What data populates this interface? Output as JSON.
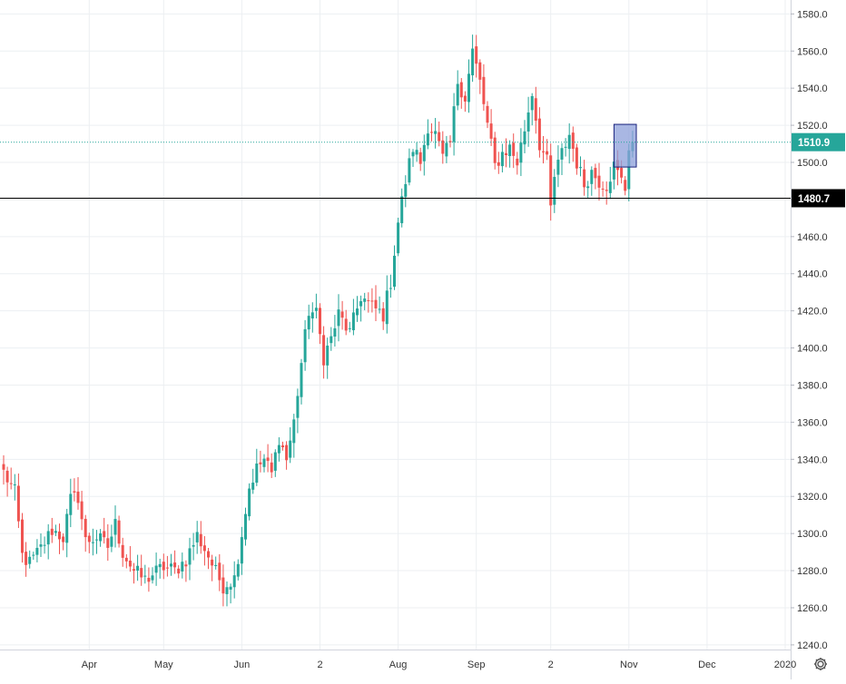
{
  "chart_data": {
    "type": "candlestick",
    "title": "",
    "xlabel": "",
    "ylabel": "",
    "ylim": [
      1237.5,
      1587.5
    ],
    "y_ticks": [
      1240,
      1260,
      1280,
      1300,
      1320,
      1340,
      1360,
      1380,
      1400,
      1420,
      1440,
      1460,
      1480,
      1500,
      1520,
      1540,
      1560,
      1580
    ],
    "x_ticks": [
      {
        "label": "Apr",
        "index": 23
      },
      {
        "label": "May",
        "index": 43
      },
      {
        "label": "Jun",
        "index": 64
      },
      {
        "label": "2",
        "index": 85
      },
      {
        "label": "Aug",
        "index": 106
      },
      {
        "label": "Sep",
        "index": 127
      },
      {
        "label": "2",
        "index": 147
      },
      {
        "label": "Nov",
        "index": 168
      },
      {
        "label": "Dec",
        "index": 189
      },
      {
        "label": "2020",
        "index": 210
      }
    ],
    "grid": true,
    "colors": {
      "up": "#26a69a",
      "down": "#ef5350",
      "grid": "#eceff2",
      "price_line": "#26a69a",
      "level_line": "#000000",
      "box_fill": "#8c9fd9",
      "box_stroke": "#1a237e"
    },
    "last_price": {
      "value": 1510.9,
      "label": "1510.9"
    },
    "horizontal_line": {
      "value": 1480.7,
      "label": "1480.7"
    },
    "rectangle": {
      "index_from": 164,
      "index_to": 170,
      "price_top": 1520.5,
      "price_bottom": 1497.5
    },
    "anchors": [
      [
        0,
        1333
      ],
      [
        3,
        1322
      ],
      [
        5,
        1288
      ],
      [
        7,
        1284
      ],
      [
        10,
        1292
      ],
      [
        13,
        1302
      ],
      [
        16,
        1298
      ],
      [
        18,
        1318
      ],
      [
        20,
        1320
      ],
      [
        22,
        1296
      ],
      [
        25,
        1298
      ],
      [
        28,
        1293
      ],
      [
        30,
        1305
      ],
      [
        32,
        1290
      ],
      [
        35,
        1280
      ],
      [
        38,
        1275
      ],
      [
        40,
        1278
      ],
      [
        43,
        1282
      ],
      [
        46,
        1280
      ],
      [
        49,
        1286
      ],
      [
        52,
        1299
      ],
      [
        55,
        1288
      ],
      [
        57,
        1279
      ],
      [
        59,
        1272
      ],
      [
        62,
        1276
      ],
      [
        64,
        1300
      ],
      [
        66,
        1325
      ],
      [
        68,
        1335
      ],
      [
        70,
        1340
      ],
      [
        72,
        1332
      ],
      [
        74,
        1352
      ],
      [
        76,
        1340
      ],
      [
        78,
        1360
      ],
      [
        80,
        1392
      ],
      [
        82,
        1420
      ],
      [
        84,
        1418
      ],
      [
        86,
        1395
      ],
      [
        88,
        1405
      ],
      [
        90,
        1418
      ],
      [
        93,
        1408
      ],
      [
        96,
        1428
      ],
      [
        99,
        1422
      ],
      [
        102,
        1418
      ],
      [
        104,
        1436
      ],
      [
        106,
        1468
      ],
      [
        108,
        1490
      ],
      [
        110,
        1508
      ],
      [
        112,
        1500
      ],
      [
        114,
        1520
      ],
      [
        116,
        1515
      ],
      [
        118,
        1502
      ],
      [
        120,
        1510
      ],
      [
        122,
        1544
      ],
      [
        124,
        1535
      ],
      [
        126,
        1560
      ],
      [
        128,
        1543
      ],
      [
        130,
        1520
      ],
      [
        132,
        1498
      ],
      [
        134,
        1505
      ],
      [
        136,
        1508
      ],
      [
        138,
        1500
      ],
      [
        140,
        1518
      ],
      [
        142,
        1538
      ],
      [
        144,
        1510
      ],
      [
        146,
        1500
      ],
      [
        147,
        1475
      ],
      [
        148,
        1492
      ],
      [
        150,
        1505
      ],
      [
        152,
        1515
      ],
      [
        154,
        1500
      ],
      [
        156,
        1488
      ],
      [
        158,
        1495
      ],
      [
        160,
        1490
      ],
      [
        162,
        1488
      ],
      [
        164,
        1498
      ],
      [
        166,
        1490
      ],
      [
        167,
        1486
      ],
      [
        168,
        1509
      ],
      [
        169,
        1510.9
      ]
    ]
  }
}
